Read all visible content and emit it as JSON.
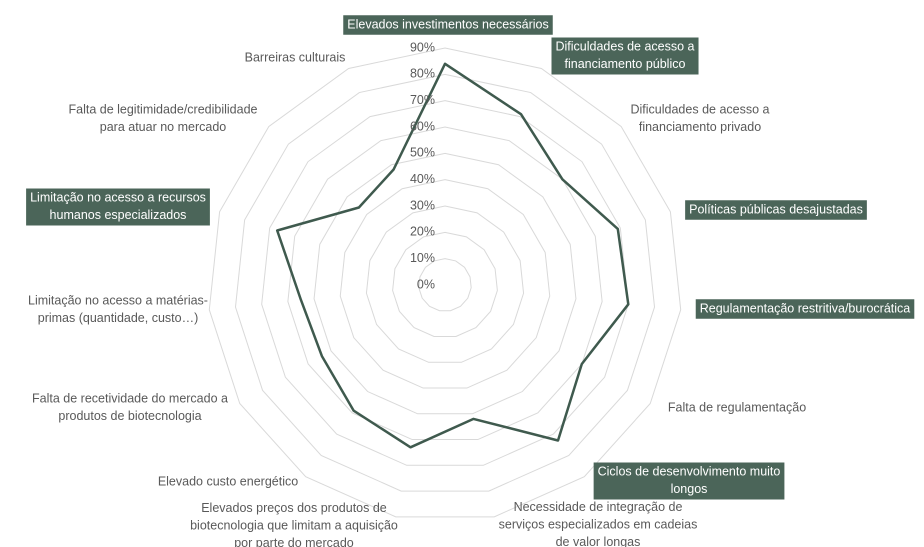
{
  "chart_data": {
    "type": "radar",
    "categories": [
      [
        "Elevados investimentos necessários"
      ],
      [
        "Dificuldades de acesso a",
        "financiamento público"
      ],
      [
        "Dificuldades de acesso a",
        "financiamento privado"
      ],
      [
        "Políticas públicas desajustadas"
      ],
      [
        "Regulamentação restritiva/burocrática"
      ],
      [
        "Falta de regulamentação"
      ],
      [
        "Ciclos de desenvolvimento muito",
        "longos"
      ],
      [
        "Necessidade de integração de",
        "serviços especializados em cadeias",
        "de valor longas"
      ],
      [
        "Elevados preços dos produtos de",
        "biotecnologia que limitam a aquisição",
        "por parte do mercado"
      ],
      [
        "Elevado custo energético"
      ],
      [
        "Falta de recetividade do mercado a",
        "produtos de biotecnologia"
      ],
      [
        "Limitação no acesso a matérias-",
        "primas (quantidade, custo…)"
      ],
      [
        "Limitação no acesso a recursos",
        "humanos especializados"
      ],
      [
        "Falta de legitimidade/credibilidade",
        "para atuar no mercado"
      ],
      [
        "Barreiras culturais"
      ]
    ],
    "values": [
      84,
      71,
      60,
      69,
      70,
      60,
      73,
      52,
      63,
      59,
      54,
      55,
      67,
      44,
      48
    ],
    "color": "#3f5a4e",
    "highlight_color": "#4b6559",
    "highlighted": [
      0,
      1,
      3,
      4,
      6,
      12
    ],
    "ylim": [
      0,
      90
    ],
    "yticks": [
      {
        "value": 0,
        "label": "0%"
      },
      {
        "value": 10,
        "label": "10%"
      },
      {
        "value": 20,
        "label": "20%"
      },
      {
        "value": 30,
        "label": "30%"
      },
      {
        "value": 40,
        "label": "40%"
      },
      {
        "value": 50,
        "label": "50%"
      },
      {
        "value": 60,
        "label": "60%"
      },
      {
        "value": 70,
        "label": "70%"
      },
      {
        "value": 80,
        "label": "80%"
      },
      {
        "value": 90,
        "label": "90%"
      }
    ]
  }
}
